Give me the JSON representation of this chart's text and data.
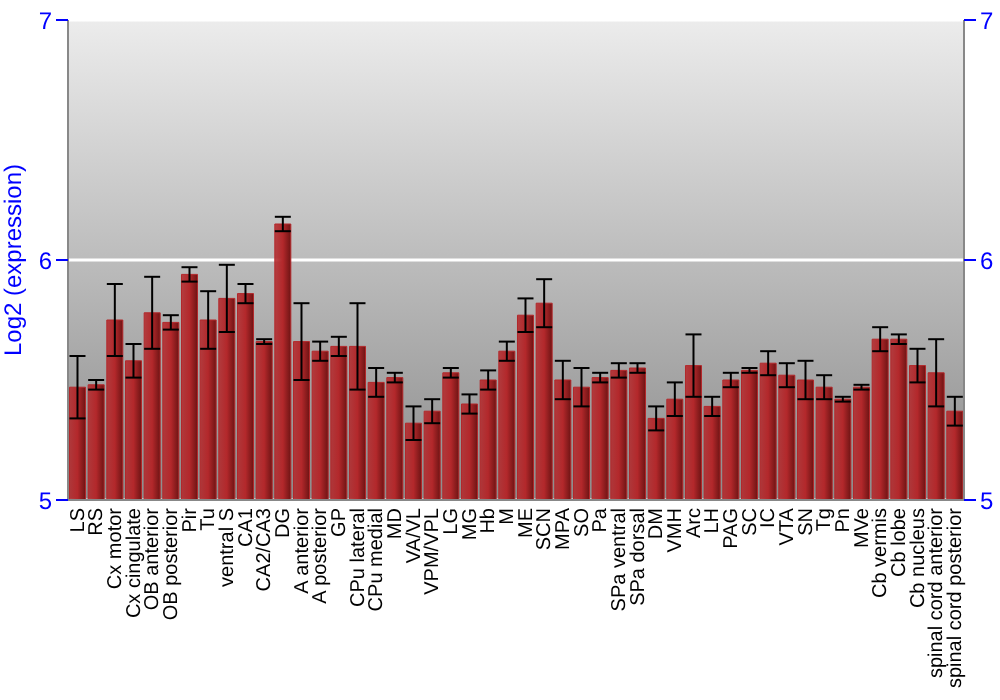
{
  "chart_data": {
    "type": "bar",
    "ylabel": "Log2 (expression)",
    "categories": [
      "LS",
      "RS",
      "Cx motor",
      "Cx cingulate",
      "OB anterior",
      "OB posterior",
      "Pir",
      "Tu",
      "ventral S",
      "CA1",
      "CA2/CA3",
      "DG",
      "A anterior",
      "A posterior",
      "GP",
      "CPu lateral",
      "CPu medial",
      "MD",
      "VA/VL",
      "VPM/VPL",
      "LG",
      "MG",
      "Hb",
      "M",
      "ME",
      "SCN",
      "MPA",
      "SO",
      "Pa",
      "SPa ventral",
      "SPa dorsal",
      "DM",
      "VMH",
      "Arc",
      "LH",
      "PAG",
      "SC",
      "IC",
      "VTA",
      "SN",
      "Tg",
      "Pn",
      "MVe",
      "Cb vermis",
      "Cb lobe",
      "Cb nucleus",
      "spinal cord anterior",
      "spinal cord posterior"
    ],
    "values": [
      5.47,
      5.48,
      5.75,
      5.58,
      5.78,
      5.74,
      5.94,
      5.75,
      5.84,
      5.86,
      5.66,
      6.15,
      5.66,
      5.62,
      5.64,
      5.64,
      5.49,
      5.51,
      5.32,
      5.37,
      5.53,
      5.4,
      5.5,
      5.62,
      5.77,
      5.82,
      5.5,
      5.47,
      5.51,
      5.54,
      5.55,
      5.34,
      5.42,
      5.56,
      5.39,
      5.5,
      5.54,
      5.57,
      5.52,
      5.5,
      5.47,
      5.42,
      5.47,
      5.67,
      5.67,
      5.56,
      5.53,
      5.37
    ],
    "errors": [
      0.13,
      0.02,
      0.15,
      0.07,
      0.15,
      0.03,
      0.03,
      0.12,
      0.14,
      0.04,
      0.01,
      0.03,
      0.16,
      0.04,
      0.04,
      0.18,
      0.06,
      0.02,
      0.07,
      0.05,
      0.02,
      0.04,
      0.04,
      0.04,
      0.07,
      0.1,
      0.08,
      0.08,
      0.02,
      0.03,
      0.02,
      0.05,
      0.07,
      0.13,
      0.04,
      0.03,
      0.01,
      0.05,
      0.05,
      0.08,
      0.05,
      0.01,
      0.01,
      0.05,
      0.02,
      0.07,
      0.14,
      0.06
    ],
    "color": "#b3282b",
    "ylim": [
      5,
      7
    ],
    "yticks": [
      5,
      6,
      7
    ],
    "y2lim": [
      5,
      7
    ],
    "y2ticks": [
      5,
      6,
      7
    ],
    "grid": "y"
  }
}
